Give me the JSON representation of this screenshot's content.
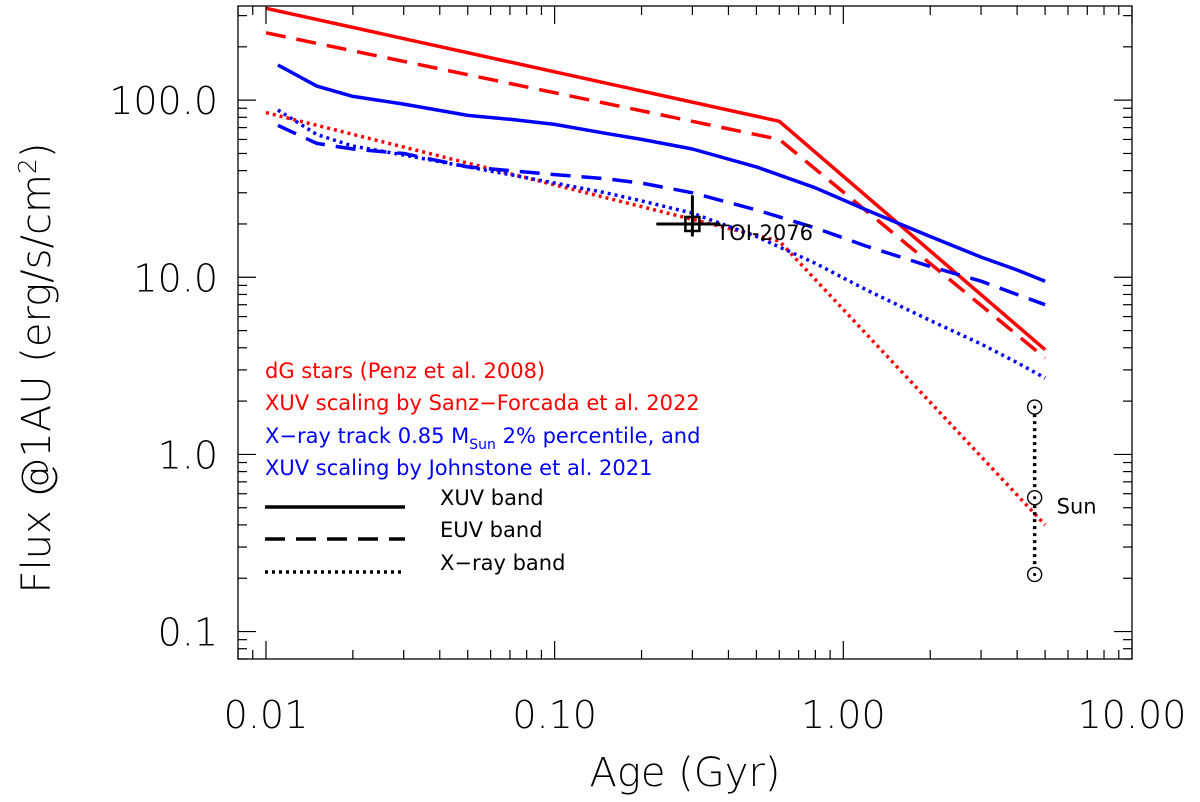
{
  "chart_data": {
    "type": "line",
    "xscale": "log",
    "yscale": "log",
    "xlim": [
      0.008,
      10
    ],
    "ylim": [
      0.07,
      340
    ],
    "xlabel": "Age (Gyr)",
    "ylabel_main": "Flux @1AU (erg/s/cm",
    "ylabel_sup": "2",
    "ylabel_end": ")",
    "xticks": [
      {
        "value": 0.01,
        "label": "0.01"
      },
      {
        "value": 0.1,
        "label": "0.10"
      },
      {
        "value": 1,
        "label": "1.00"
      },
      {
        "value": 10,
        "label": "10.00"
      }
    ],
    "yticks": [
      {
        "value": 0.1,
        "label": "0.1"
      },
      {
        "value": 1,
        "label": "1.0"
      },
      {
        "value": 10,
        "label": "10.0"
      },
      {
        "value": 100,
        "label": "100.0"
      }
    ],
    "colors": {
      "red": "#ff0000",
      "blue": "#0000ff",
      "black": "#000000"
    },
    "series": [
      {
        "name": "dG XUV",
        "color": "#ff0000",
        "style": "solid",
        "x": [
          0.01,
          0.6,
          5.0
        ],
        "y": [
          330,
          76,
          3.9
        ]
      },
      {
        "name": "dG EUV",
        "color": "#ff0000",
        "style": "dashed",
        "x": [
          0.01,
          0.6,
          5.0
        ],
        "y": [
          240,
          60,
          3.5
        ]
      },
      {
        "name": "dG X-ray",
        "color": "#ff0000",
        "style": "dotted",
        "x": [
          0.01,
          0.6,
          5.0
        ],
        "y": [
          85,
          16,
          0.4
        ]
      },
      {
        "name": "Johnstone XUV",
        "color": "#0000ff",
        "style": "solid",
        "x": [
          0.011,
          0.015,
          0.02,
          0.03,
          0.05,
          0.07,
          0.1,
          0.15,
          0.2,
          0.3,
          0.5,
          0.8,
          1.2,
          2.0,
          3.0,
          4.0,
          5.0
        ],
        "y": [
          158,
          120,
          105,
          95,
          82,
          78,
          73,
          65,
          60,
          53,
          42,
          32,
          24,
          17,
          13,
          11,
          9.5
        ]
      },
      {
        "name": "Johnstone EUV",
        "color": "#0000ff",
        "style": "dashed",
        "x": [
          0.011,
          0.015,
          0.02,
          0.03,
          0.05,
          0.07,
          0.1,
          0.15,
          0.2,
          0.3,
          0.5,
          0.8,
          1.2,
          2.0,
          3.0,
          4.0,
          5.0
        ],
        "y": [
          72,
          57,
          53,
          50,
          42,
          40,
          38,
          36,
          34,
          30,
          24,
          19,
          15,
          11.5,
          9.5,
          8,
          7
        ]
      },
      {
        "name": "Johnstone X-ray",
        "color": "#0000ff",
        "style": "dotted",
        "x": [
          0.011,
          0.015,
          0.02,
          0.03,
          0.05,
          0.07,
          0.1,
          0.15,
          0.2,
          0.3,
          0.5,
          0.8,
          1.2,
          2.0,
          3.0,
          4.0,
          5.0
        ],
        "y": [
          88,
          64,
          55,
          49,
          42,
          38,
          34,
          30,
          27,
          23,
          17,
          12,
          8.5,
          5.7,
          4.2,
          3.3,
          2.7
        ]
      }
    ],
    "toi_point": {
      "label": "TOI-2076",
      "x": 0.3,
      "y": 20,
      "x_err": [
        0.225,
        0.375
      ],
      "y_err": [
        17,
        29
      ]
    },
    "sun": {
      "label": "Sun",
      "x": 4.6,
      "y": [
        1.85,
        0.57,
        0.21
      ]
    },
    "legend": {
      "color_lines": [
        {
          "text": "dG stars (Penz et al. 2008)",
          "color": "#ff0000"
        },
        {
          "text": "XUV scaling by Sanz−Forcada et al. 2022",
          "color": "#ff0000"
        }
      ],
      "blue_line_1": {
        "pre": "X−ray track 0.85 M",
        "sub": "Sun",
        "post": " 2% percentile, and",
        "color": "#0000ff"
      },
      "blue_line_2": {
        "text": "XUV scaling by Johnstone et al. 2021",
        "color": "#0000ff"
      },
      "styles": [
        {
          "style": "solid",
          "label": "XUV band"
        },
        {
          "style": "dashed",
          "label": "EUV band"
        },
        {
          "style": "dotted",
          "label": "X−ray band"
        }
      ]
    }
  }
}
